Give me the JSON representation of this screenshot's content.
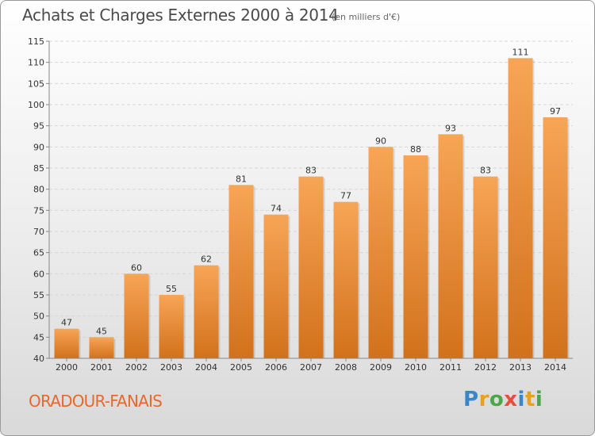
{
  "header": {
    "title": "Achats et Charges Externes 2000 à 2014",
    "subtitle": "(en milliers d'€)"
  },
  "footer": {
    "commune": "ORADOUR-FANAIS",
    "logo_letters": [
      {
        "char": "P",
        "color": "#3a86c8"
      },
      {
        "char": "r",
        "color": "#e8a020"
      },
      {
        "char": "o",
        "color": "#4aa84a"
      },
      {
        "char": "x",
        "color": "#e84c3c"
      },
      {
        "char": "i",
        "color": "#3a86c8"
      },
      {
        "char": "t",
        "color": "#e8a020"
      },
      {
        "char": "i",
        "color": "#4aa84a"
      }
    ]
  },
  "colors": {
    "bar_top": "#f7a556",
    "bar_bottom": "#d2711c",
    "grid": "#d6d6d6",
    "axis_text": "#333333",
    "title": "#4a4a4a",
    "commune": "#e8682c"
  },
  "chart_data": {
    "type": "bar",
    "title": "Achats et Charges Externes 2000 à 2014",
    "subtitle": "(en milliers d'€)",
    "xlabel": "",
    "ylabel": "",
    "categories": [
      "2000",
      "2001",
      "2002",
      "2003",
      "2004",
      "2005",
      "2006",
      "2007",
      "2008",
      "2009",
      "2010",
      "2011",
      "2012",
      "2013",
      "2014"
    ],
    "values": [
      47,
      45,
      60,
      55,
      62,
      81,
      74,
      83,
      77,
      90,
      88,
      93,
      83,
      111,
      97
    ],
    "ylim": [
      40,
      115
    ],
    "yticks": [
      40,
      45,
      50,
      55,
      60,
      65,
      70,
      75,
      80,
      85,
      90,
      95,
      100,
      105,
      110,
      115
    ],
    "grid": true,
    "data_labels": true
  }
}
